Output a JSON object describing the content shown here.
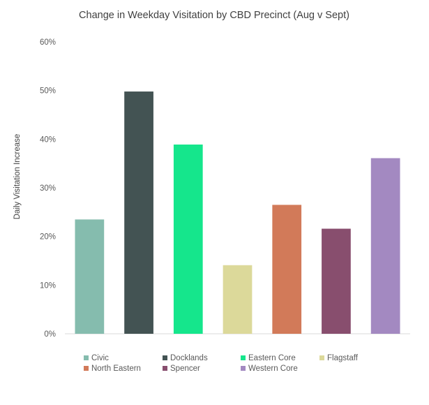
{
  "chart_data": {
    "type": "bar",
    "title": "Change in Weekday Visitation by CBD Precinct (Aug v Sept)",
    "ylabel": "Daily Visitation Increase",
    "xlabel": "",
    "ylim": [
      0,
      60
    ],
    "yticks": [
      0,
      10,
      20,
      30,
      40,
      50,
      60
    ],
    "ytick_labels": [
      "0%",
      "10%",
      "20%",
      "30%",
      "40%",
      "50%",
      "60%"
    ],
    "grid": false,
    "legend_position": "bottom",
    "categories": [
      "Civic",
      "Docklands",
      "Eastern Core",
      "Flagstaff",
      "North Eastern",
      "Spencer",
      "Western Core"
    ],
    "values": [
      23.5,
      49.8,
      38.9,
      14.1,
      26.5,
      21.6,
      36.1
    ],
    "colors": [
      "#85BCAE",
      "#435353",
      "#15E68C",
      "#DCD99A",
      "#D27A59",
      "#884E6E",
      "#A389C1"
    ]
  }
}
